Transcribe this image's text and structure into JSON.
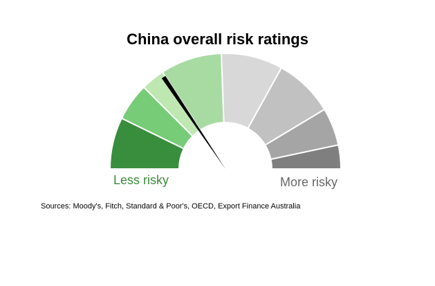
{
  "chart_data": {
    "type": "gauge",
    "title": "China overall risk ratings",
    "scale_labels": {
      "low": "Less risky",
      "high": "More risky"
    },
    "segments": [
      {
        "span_deg": 26,
        "color": "#388e3c"
      },
      {
        "span_deg": 19,
        "color": "#77cc77"
      },
      {
        "span_deg": 12,
        "color": "#bfe7b2"
      },
      {
        "span_deg": 31,
        "color": "#a8dba2"
      },
      {
        "span_deg": 31,
        "color": "#d8d8d8"
      },
      {
        "span_deg": 30,
        "color": "#c1c1c1"
      },
      {
        "span_deg": 19,
        "color": "#a5a5a5"
      },
      {
        "span_deg": 12,
        "color": "#7f7f7f"
      }
    ],
    "needle_deg": 56,
    "needle_color": "#000000"
  },
  "source_note": "Sources: Moody's, Fitch, Standard & Poor's, OECD, Export Finance Australia"
}
